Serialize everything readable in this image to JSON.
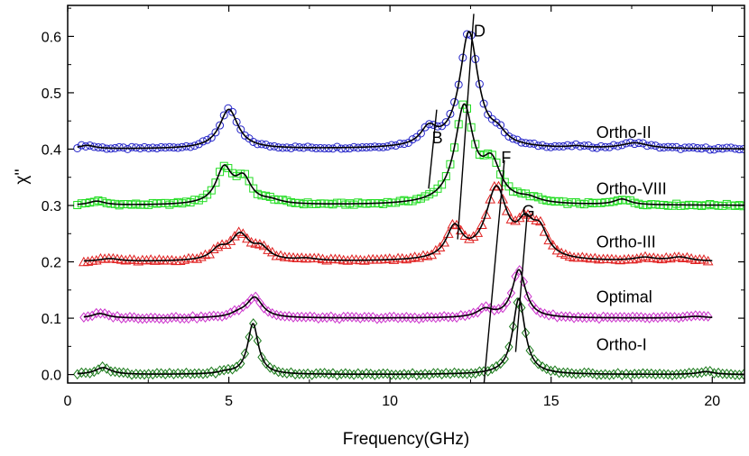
{
  "chart_data": {
    "type": "line",
    "xlabel": "Frequency(GHz)",
    "ylabel": "χ''",
    "xlim": [
      0,
      21
    ],
    "ylim": [
      -0.015,
      0.655
    ],
    "xticks": [
      0,
      5,
      10,
      15,
      20
    ],
    "yticks": [
      0.0,
      0.1,
      0.2,
      0.3,
      0.4,
      0.5,
      0.6
    ],
    "ytick_labels": [
      "0.0",
      "0.1",
      "0.2",
      "0.3",
      "0.4",
      "0.5",
      "0.6"
    ],
    "series": [
      {
        "name": "Ortho-II",
        "color": "#2323c8",
        "marker": "circle",
        "baseline": 0.4,
        "x_range": [
          0.3,
          21.0
        ],
        "peaks": [
          [
            0.6,
            0.006,
            0.3
          ],
          [
            5.0,
            0.07,
            0.35
          ],
          [
            11.2,
            0.03,
            0.3
          ],
          [
            12.45,
            0.205,
            0.35
          ],
          [
            13.35,
            0.018,
            0.3
          ],
          [
            15.8,
            0.003,
            0.3
          ],
          [
            17.6,
            0.01,
            0.5
          ]
        ]
      },
      {
        "name": "Ortho-VIII",
        "color": "#22dd22",
        "marker": "square",
        "baseline": 0.3,
        "x_range": [
          0.3,
          21.0
        ],
        "peaks": [
          [
            0.9,
            0.007,
            0.3
          ],
          [
            4.85,
            0.062,
            0.3
          ],
          [
            5.45,
            0.043,
            0.3
          ],
          [
            6.3,
            0.006,
            0.4
          ],
          [
            12.3,
            0.17,
            0.35
          ],
          [
            13.15,
            0.066,
            0.35
          ],
          [
            14.3,
            0.008,
            0.4
          ],
          [
            17.2,
            0.01,
            0.3
          ]
        ]
      },
      {
        "name": "Ortho-III",
        "color": "#e02020",
        "marker": "triangle",
        "baseline": 0.2,
        "x_range": [
          0.5,
          20.0
        ],
        "peaks": [
          [
            1.3,
            0.005,
            0.4
          ],
          [
            4.7,
            0.018,
            0.3
          ],
          [
            5.35,
            0.045,
            0.35
          ],
          [
            6.0,
            0.02,
            0.3
          ],
          [
            7.4,
            0.004,
            0.4
          ],
          [
            12.0,
            0.055,
            0.3
          ],
          [
            13.3,
            0.125,
            0.4
          ],
          [
            14.2,
            0.05,
            0.3
          ],
          [
            14.65,
            0.045,
            0.3
          ],
          [
            17.9,
            0.006,
            0.4
          ],
          [
            19.0,
            0.007,
            0.4
          ]
        ]
      },
      {
        "name": "Optimal",
        "color": "#cc33cc",
        "marker": "diamond",
        "baseline": 0.1,
        "x_range": [
          0.5,
          20.0
        ],
        "peaks": [
          [
            1.0,
            0.008,
            0.3
          ],
          [
            5.3,
            0.006,
            0.3
          ],
          [
            5.8,
            0.036,
            0.3
          ],
          [
            12.95,
            0.014,
            0.3
          ],
          [
            14.0,
            0.085,
            0.25
          ],
          [
            19.5,
            0.003,
            0.4
          ]
        ]
      },
      {
        "name": "Ortho-I",
        "color": "#1a7a1a",
        "marker": "diamond",
        "baseline": 0.0,
        "x_range": [
          0.3,
          21.0
        ],
        "peaks": [
          [
            1.1,
            0.012,
            0.3
          ],
          [
            4.9,
            0.003,
            0.3
          ],
          [
            5.75,
            0.09,
            0.2
          ],
          [
            14.0,
            0.135,
            0.23
          ],
          [
            19.8,
            0.005,
            0.3
          ]
        ]
      }
    ],
    "annotations": [
      {
        "text": "B",
        "x": 11.3,
        "y": 0.41
      },
      {
        "text": "D",
        "x": 12.6,
        "y": 0.6
      },
      {
        "text": "F",
        "x": 13.45,
        "y": 0.375
      },
      {
        "text": "G",
        "x": 14.1,
        "y": 0.28
      }
    ],
    "trend_lines": [
      {
        "from": [
          11.2,
          0.33
        ],
        "to": [
          11.45,
          0.47
        ]
      },
      {
        "from": [
          12.1,
          0.24
        ],
        "to": [
          12.6,
          0.64
        ]
      },
      {
        "from": [
          12.92,
          -0.015
        ],
        "to": [
          13.55,
          0.38
        ]
      },
      {
        "from": [
          13.9,
          0.04
        ],
        "to": [
          14.25,
          0.28
        ]
      }
    ],
    "series_labels": [
      {
        "text": "Ortho-II",
        "x": 16.4,
        "y": 0.42
      },
      {
        "text": "Ortho-VIII",
        "x": 16.4,
        "y": 0.32
      },
      {
        "text": "Ortho-III",
        "x": 16.4,
        "y": 0.226
      },
      {
        "text": "Optimal",
        "x": 16.4,
        "y": 0.128
      },
      {
        "text": "Ortho-I",
        "x": 16.4,
        "y": 0.043
      }
    ]
  }
}
